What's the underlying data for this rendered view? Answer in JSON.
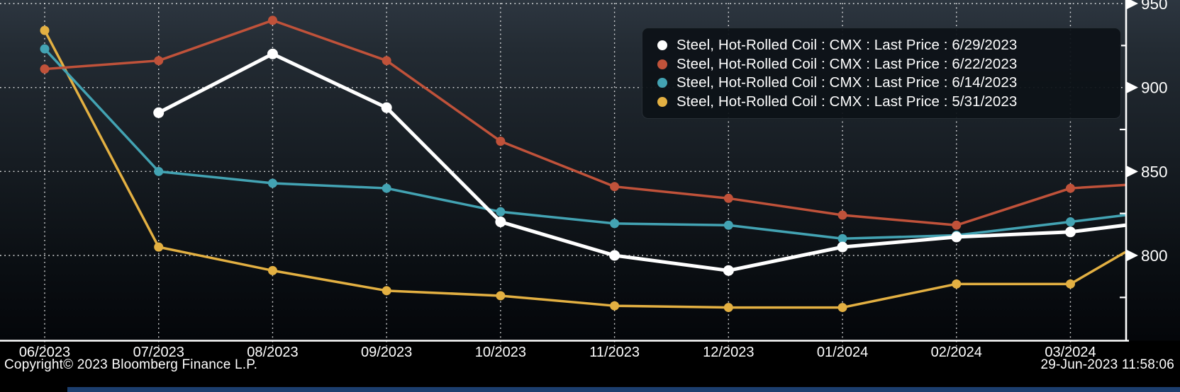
{
  "chart_data": {
    "type": "line",
    "x_categories": [
      "06/2023",
      "07/2023",
      "08/2023",
      "09/2023",
      "10/2023",
      "11/2023",
      "12/2023",
      "01/2024",
      "02/2024",
      "03/2024"
    ],
    "y_axis": {
      "side": "right",
      "major_ticks": [
        800,
        850,
        900,
        950
      ],
      "minor_ticks": [
        775,
        825,
        875,
        925
      ],
      "visible_range": [
        749.5,
        952
      ]
    },
    "grid": "dotted",
    "legend_position": "top-right",
    "series": [
      {
        "label": "Steel, Hot-Rolled Coil : CMX : Last Price : 6/29/2023",
        "color": "#ffffff",
        "values": [
          null,
          885,
          920,
          888,
          820,
          800,
          791,
          805,
          811,
          814
        ],
        "edge_value": 818
      },
      {
        "label": "Steel, Hot-Rolled Coil : CMX : Last Price : 6/22/2023",
        "color": "#c0523a",
        "values": [
          911,
          916,
          940,
          916,
          868,
          841,
          834,
          824,
          818,
          840
        ],
        "edge_value": 842
      },
      {
        "label": "Steel, Hot-Rolled Coil : CMX : Last Price : 6/14/2023",
        "color": "#43a3b3",
        "values": [
          923,
          850,
          843,
          840,
          826,
          819,
          818,
          810,
          812,
          820
        ],
        "edge_value": 824
      },
      {
        "label": "Steel, Hot-Rolled Coil : CMX : Last Price : 5/31/2023",
        "color": "#e3b042",
        "values": [
          934,
          805,
          791,
          779,
          776,
          770,
          769,
          769,
          783,
          783
        ],
        "edge_value": 802
      }
    ]
  },
  "footer": {
    "copyright": "Copyright© 2023 Bloomberg Finance L.P.",
    "timestamp": "29-Jun-2023 11:58:06"
  },
  "colors": {
    "background_top": "#2d3640",
    "background_bottom": "#000000",
    "gridline": "#ffffff",
    "axis": "#ffffff",
    "tick_label": "#ffffff",
    "legend_background": "#0d1217",
    "bottom_bar": "#1c3e6e"
  }
}
